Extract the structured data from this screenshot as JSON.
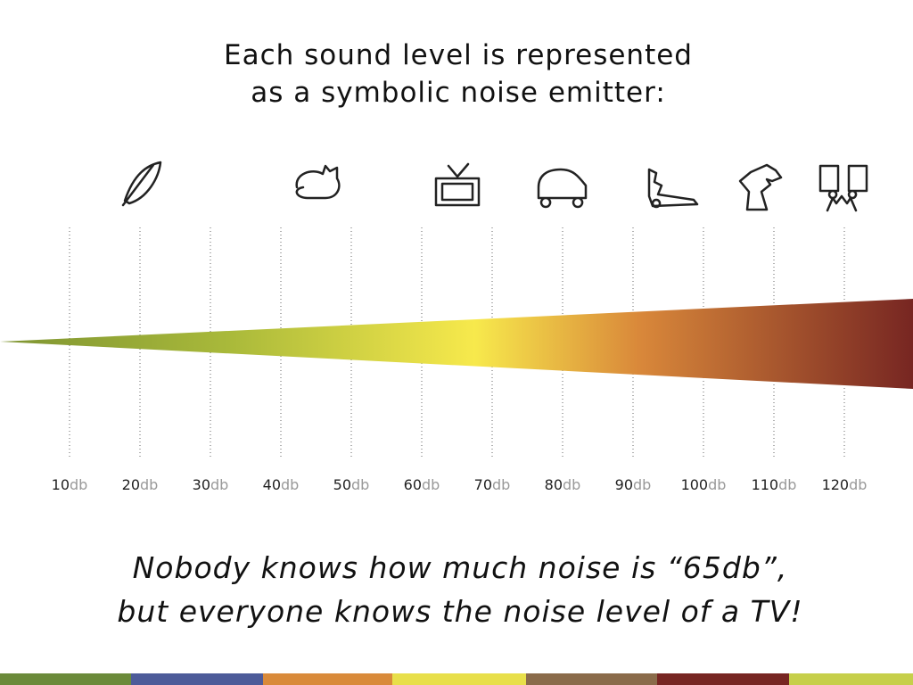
{
  "title": [
    "Each sound level is represented",
    "as a symbolic noise emitter:"
  ],
  "scale": [
    {
      "level": "10",
      "unit": "db"
    },
    {
      "level": "20",
      "unit": "db"
    },
    {
      "level": "30",
      "unit": "db"
    },
    {
      "level": "40",
      "unit": "db"
    },
    {
      "level": "50",
      "unit": "db"
    },
    {
      "level": "60",
      "unit": "db"
    },
    {
      "level": "70",
      "unit": "db"
    },
    {
      "level": "80",
      "unit": "db"
    },
    {
      "level": "90",
      "unit": "db"
    },
    {
      "level": "100",
      "unit": "db"
    },
    {
      "level": "110",
      "unit": "db"
    },
    {
      "level": "120",
      "unit": "db"
    }
  ],
  "caption": [
    "Nobody knows how much noise is “65db”,",
    "but everyone knows the noise level of a TV!"
  ]
}
